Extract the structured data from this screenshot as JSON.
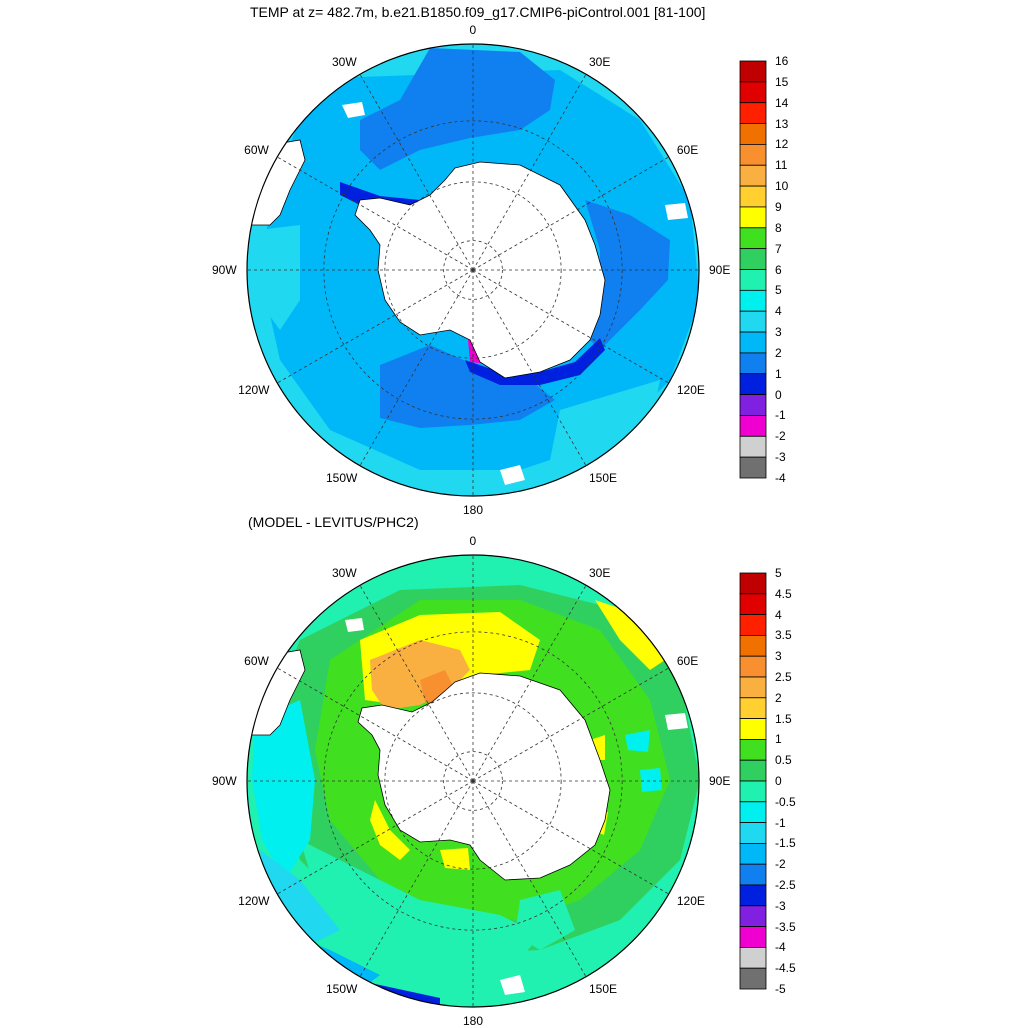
{
  "chart_data": [
    {
      "type": "heatmap",
      "projection": "south-polar-stereographic",
      "title": "TEMP at z= 482.7m, b.e21.B1850.f09_g17.CMIP6-piControl.001 [81-100]",
      "lon_labels": [
        {
          "text": "0",
          "lon": 0
        },
        {
          "text": "30E",
          "lon": 30
        },
        {
          "text": "60E",
          "lon": 60
        },
        {
          "text": "90E",
          "lon": 90
        },
        {
          "text": "120E",
          "lon": 120
        },
        {
          "text": "150E",
          "lon": 150
        },
        {
          "text": "180",
          "lon": 180
        },
        {
          "text": "150W",
          "lon": -150
        },
        {
          "text": "120W",
          "lon": -120
        },
        {
          "text": "90W",
          "lon": -90
        },
        {
          "text": "60W",
          "lon": -60
        },
        {
          "text": "30W",
          "lon": -30
        }
      ],
      "colorbar": {
        "ticks": [
          "16",
          "15",
          "14",
          "13",
          "12",
          "11",
          "10",
          "9",
          "8",
          "7",
          "6",
          "5",
          "4",
          "3",
          "2",
          "1",
          "0",
          "-1",
          "-2",
          "-3",
          "-4"
        ],
        "colors": [
          "#c00000",
          "#e00000",
          "#ff2000",
          "#f07000",
          "#f89030",
          "#fab040",
          "#ffd030",
          "#ffff00",
          "#40e020",
          "#30d060",
          "#20f0b0",
          "#00f0f0",
          "#20d8f0",
          "#00b8f8",
          "#1080f0",
          "#0020e0",
          "#8020e0",
          "#f000d0",
          "#d0d0d0",
          "#707070"
        ]
      },
      "field": {
        "range": [
          -4,
          16
        ],
        "dominant": "2 to 3",
        "shelf_min": "-2 to -1"
      }
    },
    {
      "type": "heatmap",
      "projection": "south-polar-stereographic",
      "title": "(MODEL - LEVITUS/PHC2)",
      "lon_labels": [
        {
          "text": "0",
          "lon": 0
        },
        {
          "text": "30E",
          "lon": 30
        },
        {
          "text": "60E",
          "lon": 60
        },
        {
          "text": "90E",
          "lon": 90
        },
        {
          "text": "120E",
          "lon": 120
        },
        {
          "text": "150E",
          "lon": 150
        },
        {
          "text": "180",
          "lon": 180
        },
        {
          "text": "150W",
          "lon": -150
        },
        {
          "text": "120W",
          "lon": -120
        },
        {
          "text": "90W",
          "lon": -90
        },
        {
          "text": "60W",
          "lon": -60
        },
        {
          "text": "30W",
          "lon": -30
        }
      ],
      "colorbar": {
        "ticks": [
          "5",
          "4.5",
          "4",
          "3.5",
          "3",
          "2.5",
          "2",
          "1.5",
          "1",
          "0.5",
          "0",
          "-0.5",
          "-1",
          "-1.5",
          "-2",
          "-2.5",
          "-3",
          "-3.5",
          "-4",
          "-4.5",
          "-5"
        ],
        "colors": [
          "#c00000",
          "#e00000",
          "#ff2000",
          "#f07000",
          "#f89030",
          "#fab040",
          "#ffd030",
          "#ffff00",
          "#40e020",
          "#30d060",
          "#20f0b0",
          "#00f0f0",
          "#20d8f0",
          "#00b8f8",
          "#1080f0",
          "#0020e0",
          "#8020e0",
          "#f000d0",
          "#d0d0d0",
          "#707070"
        ]
      },
      "field": {
        "range": [
          -5,
          5
        ],
        "dominant": "0 to 1",
        "weddell_max": "2 to 3",
        "ross_min": "-3 to -2.5"
      }
    }
  ]
}
